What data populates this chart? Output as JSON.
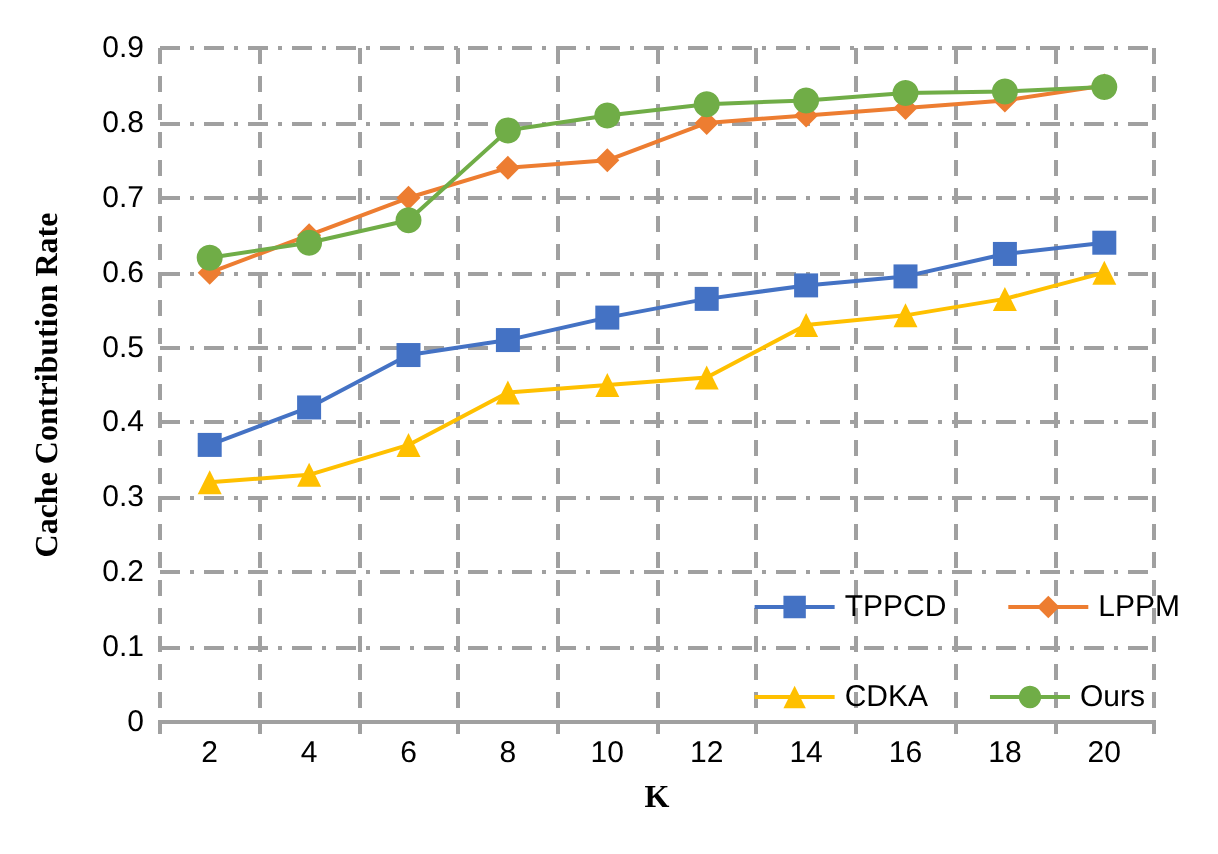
{
  "chart_data": {
    "type": "line",
    "xlabel": "K",
    "ylabel": "Cache Contribution Rate",
    "categories": [
      "2",
      "4",
      "6",
      "8",
      "10",
      "12",
      "14",
      "16",
      "18",
      "20"
    ],
    "ylim": [
      0,
      0.9
    ],
    "yticks": [
      0,
      0.1,
      0.2,
      0.3,
      0.4,
      0.5,
      0.6,
      0.7,
      0.8,
      0.9
    ],
    "grid": true,
    "legend": "bottom right",
    "line_style": "solid",
    "series": [
      {
        "name": "TPPCD",
        "color": "#4472c4",
        "marker": "square",
        "values": [
          0.37,
          0.42,
          0.49,
          0.51,
          0.54,
          0.565,
          0.583,
          0.595,
          0.625,
          0.64
        ]
      },
      {
        "name": "LPPM",
        "color": "#ed7d31",
        "marker": "diamond",
        "values": [
          0.6,
          0.65,
          0.7,
          0.74,
          0.75,
          0.8,
          0.81,
          0.82,
          0.83,
          0.85
        ]
      },
      {
        "name": "CDKA",
        "color": "#ffc000",
        "marker": "triangle",
        "values": [
          0.32,
          0.33,
          0.37,
          0.44,
          0.45,
          0.46,
          0.53,
          0.543,
          0.565,
          0.6
        ]
      },
      {
        "name": "Ours",
        "color": "#70ad47",
        "marker": "circle",
        "values": [
          0.62,
          0.64,
          0.67,
          0.79,
          0.81,
          0.825,
          0.83,
          0.84,
          0.842,
          0.848
        ]
      }
    ]
  }
}
